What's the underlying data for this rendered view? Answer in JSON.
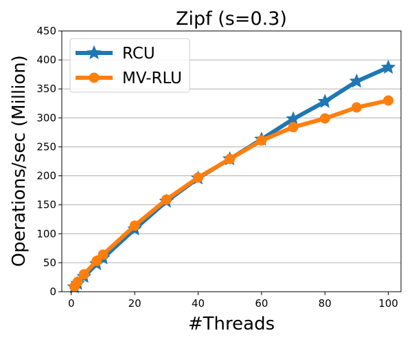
{
  "chart_data": {
    "type": "line",
    "title": "Zipf (s=0.3)",
    "xlabel": "#Threads",
    "ylabel": "Operations/sec (Million)",
    "xlim": [
      -3,
      104
    ],
    "ylim": [
      0,
      450
    ],
    "xticks": [
      0,
      20,
      40,
      60,
      80,
      100
    ],
    "yticks": [
      0,
      50,
      100,
      150,
      200,
      250,
      300,
      350,
      400,
      450
    ],
    "grid": "horizontal",
    "legend_position": "top-left",
    "series": [
      {
        "name": "RCU",
        "color": "#1f77b4",
        "marker": "star",
        "x": [
          1,
          2,
          4,
          8,
          10,
          20,
          30,
          40,
          50,
          60,
          70,
          80,
          90,
          100
        ],
        "y": [
          8,
          14,
          26,
          48,
          58,
          108,
          156,
          196,
          229,
          263,
          298,
          328,
          363,
          387
        ]
      },
      {
        "name": "MV-RLU",
        "color": "#ff7f0e",
        "marker": "circle",
        "x": [
          1,
          2,
          4,
          8,
          10,
          20,
          30,
          40,
          50,
          60,
          70,
          80,
          90,
          100
        ],
        "y": [
          9,
          17,
          30,
          53,
          64,
          114,
          159,
          197,
          229,
          261,
          284,
          299,
          318,
          330
        ]
      }
    ]
  }
}
